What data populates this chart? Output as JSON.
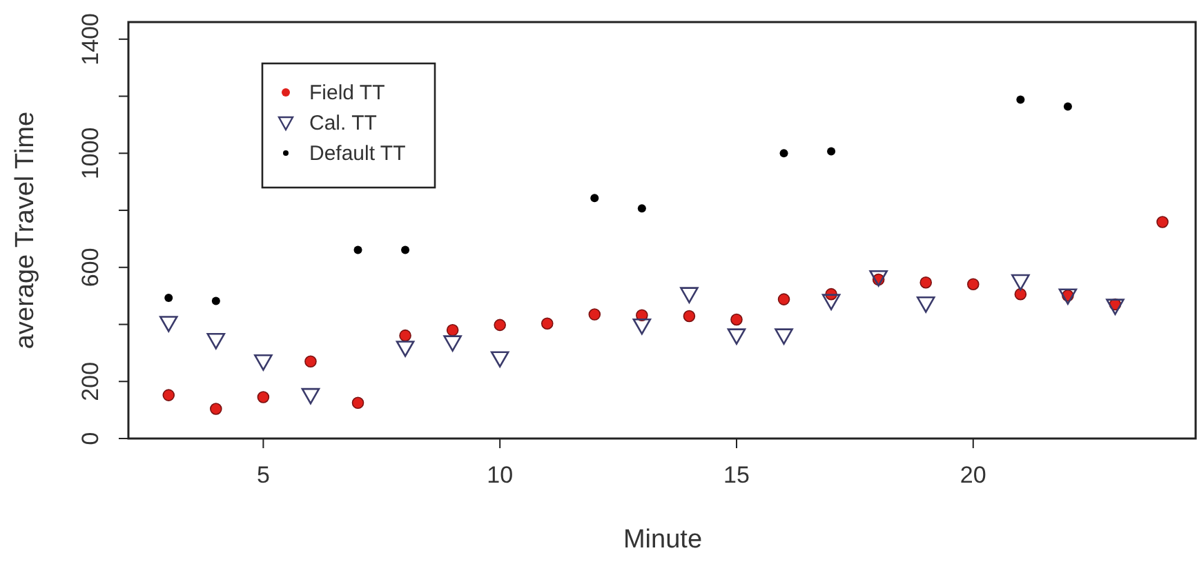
{
  "chart_data": {
    "type": "scatter",
    "xlabel": "Minute",
    "ylabel": "average Travel Time",
    "x": [
      3,
      4,
      5,
      6,
      7,
      8,
      9,
      10,
      11,
      12,
      13,
      14,
      15,
      16,
      17,
      18,
      19,
      20,
      21,
      22,
      23,
      24
    ],
    "series": [
      {
        "name": "Field TT",
        "color": "#e0201b",
        "marker": "circle",
        "values": [
          152,
          104,
          145,
          270,
          125,
          361,
          380,
          398,
          403,
          435,
          432,
          429,
          417,
          488,
          506,
          557,
          547,
          541,
          506,
          501,
          470,
          759
        ]
      },
      {
        "name": "Cal. TT",
        "color": "#3a3a6a",
        "marker": "triangle",
        "values": [
          405,
          345,
          270,
          152,
          null,
          318,
          337,
          281,
          null,
          null,
          396,
          506,
          361,
          361,
          482,
          565,
          473,
          null,
          551,
          501,
          465,
          null
        ]
      },
      {
        "name": "Default TT",
        "color": "#000000",
        "marker": "circle",
        "values": [
          493,
          482,
          null,
          null,
          661,
          661,
          null,
          null,
          null,
          843,
          807,
          null,
          null,
          1000,
          1007,
          null,
          null,
          null,
          1188,
          1164,
          null,
          null
        ]
      }
    ],
    "xlim": [
      2.15,
      24.7
    ],
    "ylim": [
      0,
      1460
    ],
    "xticks": [
      5,
      10,
      15,
      20
    ],
    "yticks": [
      0,
      200,
      {
        "value": 400,
        "label": null
      },
      600,
      {
        "value": 800,
        "label": null
      },
      1000,
      {
        "value": 1200,
        "label": null
      },
      1400
    ],
    "legend": "top left",
    "grid": false
  }
}
